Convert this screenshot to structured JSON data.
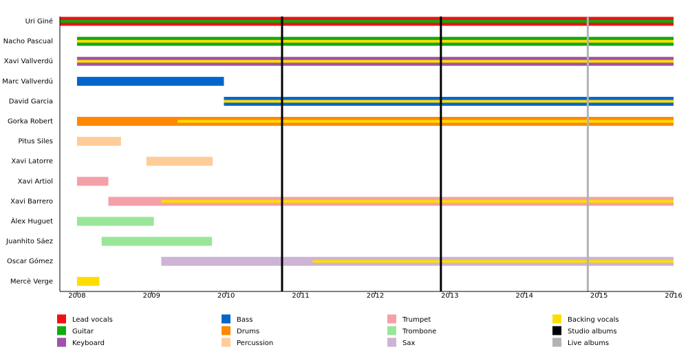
{
  "chart_data": {
    "type": "timeline",
    "xlim": [
      2007.77,
      2016
    ],
    "xticks": [
      2008,
      2009,
      2010,
      2011,
      2012,
      2013,
      2014,
      2015,
      2016
    ],
    "roles": [
      {
        "name": "Lead vocals",
        "color": "#ee1111"
      },
      {
        "name": "Guitar",
        "color": "#11aa11"
      },
      {
        "name": "Keyboard",
        "color": "#a052a8"
      },
      {
        "name": "Bass",
        "color": "#0066cc"
      },
      {
        "name": "Drums",
        "color": "#ff8800"
      },
      {
        "name": "Percussion",
        "color": "#ffcc99"
      },
      {
        "name": "Trumpet",
        "color": "#f4a0a8"
      },
      {
        "name": "Trombone",
        "color": "#99e699"
      },
      {
        "name": "Sax",
        "color": "#cdb3d4"
      },
      {
        "name": "Backing vocals",
        "color": "#ffdd00"
      },
      {
        "name": "Studio albums",
        "color": "#000000"
      },
      {
        "name": "Live albums",
        "color": "#b3b3b3"
      }
    ],
    "events": [
      {
        "role": "Studio albums",
        "x": 2010.75
      },
      {
        "role": "Studio albums",
        "x": 2012.88
      },
      {
        "role": "Live albums",
        "x": 2014.85
      }
    ],
    "rows": [
      {
        "name": "Uri Giné",
        "bars": [
          {
            "role": "Lead vocals",
            "start": 2007.77,
            "end": 2016
          }
        ],
        "stripes": [
          {
            "role": "Guitar",
            "start": 2007.77,
            "end": 2016
          }
        ]
      },
      {
        "name": "Nacho Pascual",
        "bars": [
          {
            "role": "Guitar",
            "start": 2008,
            "end": 2016
          }
        ],
        "stripes": [
          {
            "role": "Backing vocals",
            "start": 2008,
            "end": 2016
          }
        ]
      },
      {
        "name": "Xavi Vallverdú",
        "bars": [
          {
            "role": "Keyboard",
            "start": 2008,
            "end": 2016
          }
        ],
        "stripes": [
          {
            "role": "Backing vocals",
            "start": 2008,
            "end": 2016
          }
        ]
      },
      {
        "name": "Marc Vallverdú",
        "bars": [
          {
            "role": "Bass",
            "start": 2008,
            "end": 2009.97
          }
        ],
        "stripes": []
      },
      {
        "name": "David Garcia",
        "bars": [
          {
            "role": "Bass",
            "start": 2009.97,
            "end": 2016
          }
        ],
        "stripes": [
          {
            "role": "Backing vocals",
            "start": 2009.97,
            "end": 2016
          }
        ]
      },
      {
        "name": "Gorka Robert",
        "bars": [
          {
            "role": "Drums",
            "start": 2008,
            "end": 2016
          }
        ],
        "stripes": [
          {
            "role": "Backing vocals",
            "start": 2009.35,
            "end": 2016
          }
        ]
      },
      {
        "name": "Pitus Siles",
        "bars": [
          {
            "role": "Percussion",
            "start": 2008,
            "end": 2008.59
          }
        ],
        "stripes": []
      },
      {
        "name": "Xavi Latorre",
        "bars": [
          {
            "role": "Percussion",
            "start": 2008.93,
            "end": 2009.82
          }
        ],
        "stripes": []
      },
      {
        "name": "Xavi Artiol",
        "bars": [
          {
            "role": "Trumpet",
            "start": 2008,
            "end": 2008.42
          }
        ],
        "stripes": []
      },
      {
        "name": "Xavi Barrero",
        "bars": [
          {
            "role": "Trumpet",
            "start": 2008.42,
            "end": 2016
          }
        ],
        "stripes": [
          {
            "role": "Backing vocals",
            "start": 2009.13,
            "end": 2016
          }
        ]
      },
      {
        "name": "Àlex Huguet",
        "bars": [
          {
            "role": "Trombone",
            "start": 2008,
            "end": 2009.03
          }
        ],
        "stripes": []
      },
      {
        "name": "Juanhito Sáez",
        "bars": [
          {
            "role": "Trombone",
            "start": 2008.33,
            "end": 2009.81
          }
        ],
        "stripes": []
      },
      {
        "name": "Oscar Gómez",
        "bars": [
          {
            "role": "Sax",
            "start": 2009.13,
            "end": 2016
          }
        ],
        "stripes": [
          {
            "role": "Backing vocals",
            "start": 2011.16,
            "end": 2016
          }
        ]
      },
      {
        "name": "Mercè Verge",
        "bars": [
          {
            "role": "Backing vocals",
            "start": 2008,
            "end": 2008.3
          }
        ],
        "stripes": []
      }
    ]
  }
}
